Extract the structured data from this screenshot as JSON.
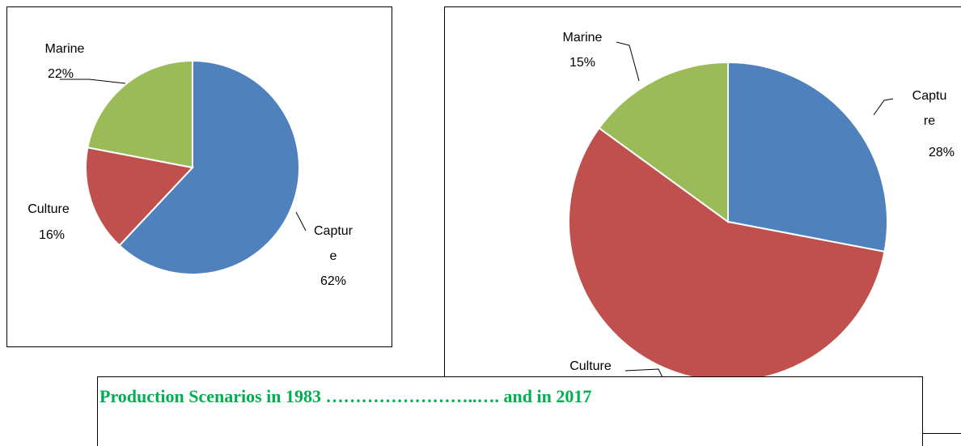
{
  "chart_data": [
    {
      "type": "pie",
      "categories": [
        "Capture",
        "Culture",
        "Marine"
      ],
      "values": [
        62,
        16,
        22
      ],
      "value_labels": [
        "62%",
        "16%",
        "22%"
      ],
      "colors": [
        "#4f81bd",
        "#c0504d",
        "#9bbb59"
      ]
    },
    {
      "type": "pie",
      "categories": [
        "Capture",
        "Culture",
        "Marine"
      ],
      "values": [
        28,
        57,
        15
      ],
      "value_labels": [
        "28%",
        null,
        "15%"
      ],
      "colors": [
        "#4f81bd",
        "#c0504d",
        "#9bbb59"
      ]
    }
  ],
  "caption": "Production Scenarios in 1983 ……………………..…. and in 2017"
}
